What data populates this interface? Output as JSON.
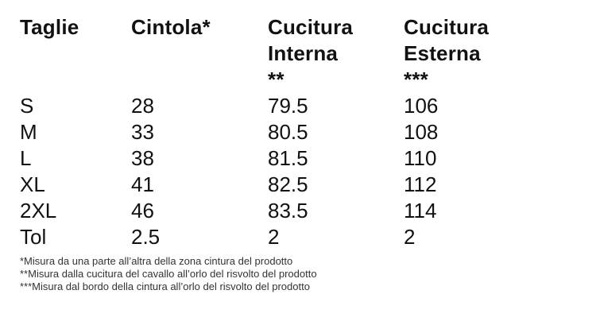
{
  "table": {
    "headers": [
      "Taglie",
      "Cintola*",
      "Cucitura\nInterna\n**",
      "Cucitura\nEsterna\n***"
    ],
    "rows": [
      [
        "S",
        "28",
        "79.5",
        "106"
      ],
      [
        "M",
        "33",
        "80.5",
        "108"
      ],
      [
        "L",
        "38",
        "81.5",
        "110"
      ],
      [
        "XL",
        "41",
        "82.5",
        "112"
      ],
      [
        "2XL",
        "46",
        "83.5",
        "114"
      ],
      [
        "Tol",
        "2.5",
        "2",
        "2"
      ]
    ]
  },
  "footnotes": [
    "*Misura da una parte all’altra della zona cintura del prodotto",
    "**Misura dalla cucitura del cavallo all’orlo del risvolto del prodotto",
    "***Misura dal bordo della cintura all’orlo del risvolto del prodotto"
  ],
  "colors": {
    "text": "#111111",
    "footnote": "#333333",
    "background": "#ffffff"
  }
}
